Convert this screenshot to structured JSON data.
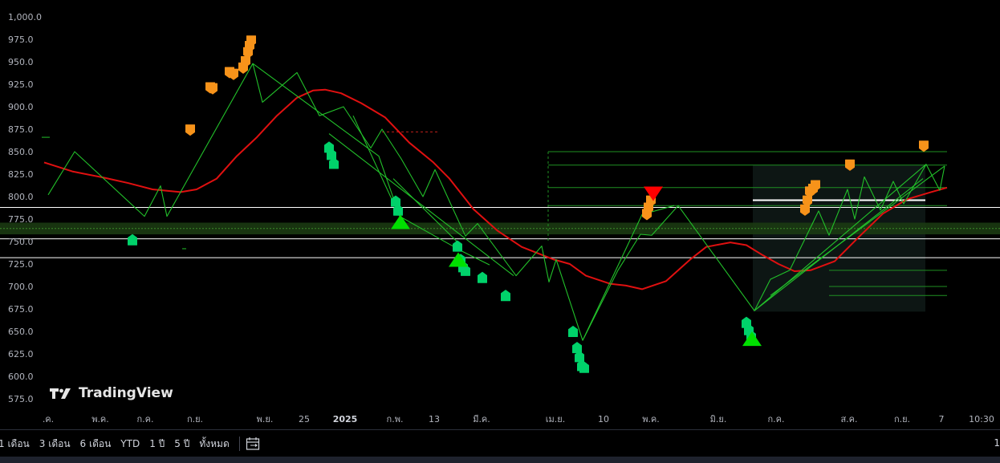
{
  "chart_data": {
    "type": "line",
    "y_ticks": [
      "1,000.0",
      "975.0",
      "950.0",
      "925.0",
      "900.0",
      "875.0",
      "850.0",
      "825.0",
      "800.0",
      "775.0",
      "750.0",
      "725.0",
      "700.0",
      "675.0",
      "650.0",
      "625.0",
      "600.0",
      "575.0"
    ],
    "ylim": [
      562,
      1010
    ],
    "x_ticks": [
      {
        "label": ".ค.",
        "bold": false
      },
      {
        "label": "พ.ค.",
        "bold": false
      },
      {
        "label": "ก.ค.",
        "bold": false
      },
      {
        "label": "ก.ย.",
        "bold": false
      },
      {
        "label": "พ.ย.",
        "bold": false
      },
      {
        "label": "25",
        "bold": false
      },
      {
        "label": "2025",
        "bold": true
      },
      {
        "label": "ก.พ.",
        "bold": false
      },
      {
        "label": "13",
        "bold": false
      },
      {
        "label": "มี.ค.",
        "bold": false
      },
      {
        "label": "เม.ย.",
        "bold": false
      },
      {
        "label": "10",
        "bold": false
      },
      {
        "label": "พ.ค.",
        "bold": false
      },
      {
        "label": "มิ.ย.",
        "bold": false
      },
      {
        "label": "ก.ค.",
        "bold": false
      },
      {
        "label": "ส.ค.",
        "bold": false
      },
      {
        "label": "ก.ย.",
        "bold": false
      },
      {
        "label": "7",
        "bold": false
      },
      {
        "label": "10:30",
        "bold": false
      }
    ],
    "series": [
      {
        "color": "#e01010",
        "values": [
          [
            55,
            838
          ],
          [
            90,
            828
          ],
          [
            130,
            821
          ],
          [
            160,
            815
          ],
          [
            190,
            808
          ],
          [
            225,
            805
          ],
          [
            245,
            808
          ],
          [
            270,
            820
          ],
          [
            295,
            845
          ],
          [
            320,
            866
          ],
          [
            345,
            890
          ],
          [
            370,
            910
          ],
          [
            390,
            918
          ],
          [
            405,
            919
          ],
          [
            425,
            915
          ],
          [
            450,
            904
          ],
          [
            480,
            888
          ],
          [
            510,
            860
          ],
          [
            540,
            838
          ],
          [
            560,
            820
          ],
          [
            590,
            786
          ],
          [
            620,
            762
          ],
          [
            650,
            744
          ],
          [
            690,
            730
          ],
          [
            710,
            725
          ],
          [
            730,
            712
          ],
          [
            760,
            703
          ],
          [
            780,
            701
          ],
          [
            800,
            697
          ],
          [
            830,
            706
          ],
          [
            860,
            730
          ],
          [
            880,
            744
          ],
          [
            910,
            749
          ],
          [
            930,
            746
          ],
          [
            950,
            735
          ],
          [
            970,
            725
          ],
          [
            990,
            717
          ],
          [
            1010,
            718
          ],
          [
            1040,
            728
          ],
          [
            1070,
            755
          ],
          [
            1100,
            781
          ],
          [
            1130,
            797
          ],
          [
            1160,
            805
          ],
          [
            1180,
            810
          ]
        ]
      },
      {
        "color": "#22c02a",
        "values": [
          [
            60,
            802
          ],
          [
            93,
            850
          ],
          [
            180,
            778
          ],
          [
            200,
            812
          ],
          [
            208,
            778
          ],
          [
            315,
            948
          ],
          [
            327,
            905
          ],
          [
            370,
            938
          ],
          [
            398,
            890
          ],
          [
            428,
            900
          ],
          [
            462,
            854
          ],
          [
            476,
            875
          ],
          [
            500,
            842
          ],
          [
            527,
            800
          ],
          [
            542,
            830
          ],
          [
            580,
            756
          ],
          [
            595,
            770
          ],
          [
            643,
            712
          ],
          [
            675,
            745
          ],
          [
            684,
            705
          ],
          [
            693,
            730
          ],
          [
            726,
            640
          ],
          [
            770,
            718
          ],
          [
            798,
            758
          ],
          [
            812,
            757
          ],
          [
            845,
            790
          ],
          [
            940,
            673
          ],
          [
            960,
            708
          ],
          [
            984,
            718
          ],
          [
            1020,
            784
          ],
          [
            1033,
            757
          ],
          [
            1056,
            808
          ],
          [
            1065,
            775
          ],
          [
            1077,
            822
          ],
          [
            1097,
            785
          ],
          [
            1113,
            817
          ],
          [
            1126,
            792
          ],
          [
            1154,
            836
          ],
          [
            1171,
            807
          ],
          [
            1177,
            834
          ]
        ]
      },
      {
        "color": "#22c02a",
        "values": [
          [
            315,
            948
          ],
          [
            472,
            845
          ],
          [
            498,
            778
          ],
          [
            574,
            740
          ],
          [
            610,
            724
          ]
        ]
      },
      {
        "color": "#22c02a",
        "values": [
          [
            410,
            870
          ],
          [
            640,
            712
          ]
        ]
      },
      {
        "color": "#22c02a",
        "values": [
          [
            440,
            890
          ],
          [
            498,
            778
          ]
        ]
      },
      {
        "color": "#22c02a",
        "values": [
          [
            490,
            820
          ],
          [
            575,
            745
          ]
        ]
      },
      {
        "color": "#22c02a",
        "values": [
          [
            726,
            640
          ],
          [
            800,
            780
          ],
          [
            840,
            790
          ]
        ]
      },
      {
        "color": "#22c02a",
        "values": [
          [
            940,
            673
          ],
          [
            1154,
            836
          ]
        ]
      },
      {
        "color": "#22c02a",
        "values": [
          [
            940,
            673
          ],
          [
            1150,
            820
          ]
        ]
      },
      {
        "color": "#22c02a",
        "values": [
          [
            960,
            690
          ],
          [
            1177,
            834
          ]
        ]
      }
    ],
    "horizontal_lines": [
      {
        "y": 788,
        "color": "#ffffff"
      },
      {
        "y": 753,
        "color": "#ffffff"
      },
      {
        "y": 732,
        "color": "#ffffff"
      }
    ],
    "zones": [
      {
        "y1": 758,
        "y2": 771,
        "color": "#1b3a12"
      }
    ],
    "upper_level_lines": [
      850,
      835,
      810,
      790
    ],
    "lower_level_lines": [
      718,
      700,
      690
    ],
    "upper_markers": [
      [
        237,
        874
      ],
      [
        262,
        921
      ],
      [
        265,
        920
      ],
      [
        286,
        938
      ],
      [
        291,
        936
      ],
      [
        303,
        943
      ],
      [
        306,
        950
      ],
      [
        309,
        960
      ],
      [
        311,
        967
      ],
      [
        313,
        973
      ],
      [
        806,
        780
      ],
      [
        808,
        787
      ],
      [
        811,
        795
      ],
      [
        1003,
        785
      ],
      [
        1006,
        795
      ],
      [
        1009,
        805
      ],
      [
        1013,
        808
      ],
      [
        1016,
        812
      ],
      [
        1059,
        835
      ],
      [
        1151,
        856
      ]
    ],
    "lower_markers": [
      [
        165,
        752
      ],
      [
        410,
        855
      ],
      [
        413,
        847
      ],
      [
        416,
        837
      ],
      [
        493,
        795
      ],
      [
        496,
        785
      ],
      [
        570,
        745
      ],
      [
        574,
        730
      ],
      [
        577,
        722
      ],
      [
        580,
        718
      ],
      [
        601,
        710
      ],
      [
        630,
        690
      ],
      [
        714,
        650
      ],
      [
        719,
        632
      ],
      [
        722,
        622
      ],
      [
        725,
        612
      ],
      [
        728,
        610
      ],
      [
        930,
        660
      ],
      [
        933,
        652
      ],
      [
        936,
        645
      ]
    ],
    "buy_triangles": [
      [
        499,
        771
      ],
      [
        571,
        729
      ],
      [
        937,
        641
      ]
    ],
    "sell_triangles": [
      [
        814,
        804
      ]
    ]
  },
  "watermark": "TradingView",
  "toolbar": {
    "ranges": [
      "1 เดือน",
      "3 เดือน",
      "6 เดือน",
      "YTD",
      "1 ปี",
      "5 ปี",
      "ทั้งหมด"
    ],
    "right_label": "1"
  },
  "colors": {
    "background": "#000000",
    "ma": "#e01010",
    "zigzag": "#22c02a",
    "marker_orange": "#f7931a",
    "marker_green": "#00d26a"
  }
}
